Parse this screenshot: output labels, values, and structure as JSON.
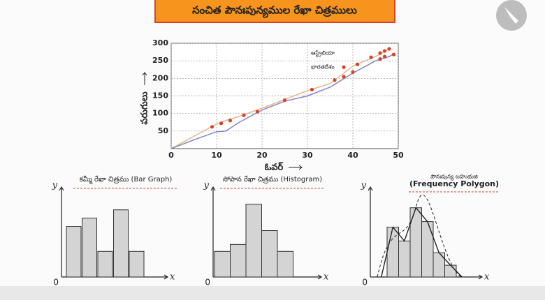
{
  "chart_data": [
    {
      "type": "line",
      "title": "సంచిత పౌనఃపున్యముల రేఖా చిత్రములు",
      "x_label": "ఓవర్",
      "y_label": "పరుగులు",
      "x": [
        0,
        5,
        10,
        12,
        15,
        20,
        25,
        30,
        35,
        40,
        45,
        48,
        49
      ],
      "series": [
        {
          "name": "ఆస్ట్రేలియా",
          "color": "#e8b48a",
          "values": [
            0,
            35,
            70,
            80,
            92,
            115,
            140,
            165,
            185,
            235,
            262,
            284,
            null
          ],
          "markers": {
            "x": [
              9,
              11,
              13,
              16,
              38,
              41,
              44,
              46,
              47,
              48
            ],
            "y": [
              62,
              72,
              80,
              95,
              232,
              240,
              260,
              272,
              278,
              284
            ]
          }
        },
        {
          "name": "భారతదేశం",
          "color": "#7f86c9",
          "values": [
            0,
            25,
            48,
            50,
            75,
            110,
            135,
            150,
            175,
            215,
            250,
            262,
            270
          ],
          "markers": {
            "x": [
              19,
              25,
              31,
              36,
              38,
              40,
              46,
              47,
              49
            ],
            "y": [
              105,
              138,
              168,
              195,
              205,
              218,
              255,
              262,
              268
            ]
          }
        }
      ],
      "marker_color": "#d9412b",
      "xlim": [
        0,
        50
      ],
      "xticks": [
        0,
        10,
        20,
        30,
        40,
        50
      ],
      "ylim": [
        0,
        300
      ],
      "yticks": [
        50,
        100,
        150,
        200,
        250,
        300
      ],
      "grid": true
    },
    {
      "type": "bar",
      "title": "కమ్మీ రేఖా చిత్రము (Bar Graph)",
      "x_label": "x",
      "y_label": "y",
      "origin_label": "0",
      "values": [
        73,
        85,
        37,
        97,
        37
      ],
      "color": "#d4d4d4",
      "ylim": [
        0,
        130
      ]
    },
    {
      "type": "histogram",
      "title": "సోపాన రేఖా చిత్రము (Histogram)",
      "x_label": "x",
      "y_label": "y",
      "origin_label": "0",
      "values": [
        37,
        47,
        105,
        67,
        37
      ],
      "color": "#d4d4d4",
      "ylim": [
        0,
        130
      ]
    },
    {
      "type": "frequency-polygon",
      "title": "పౌనఃపున్య బహుభుజి",
      "subtitle": "(Frequency Polygon)",
      "x_label": "x",
      "y_label": "y",
      "origin_label": "0",
      "values": [
        72,
        52,
        100,
        80,
        35,
        17
      ],
      "color": "#d4d4d4",
      "ylim": [
        0,
        130
      ]
    }
  ]
}
